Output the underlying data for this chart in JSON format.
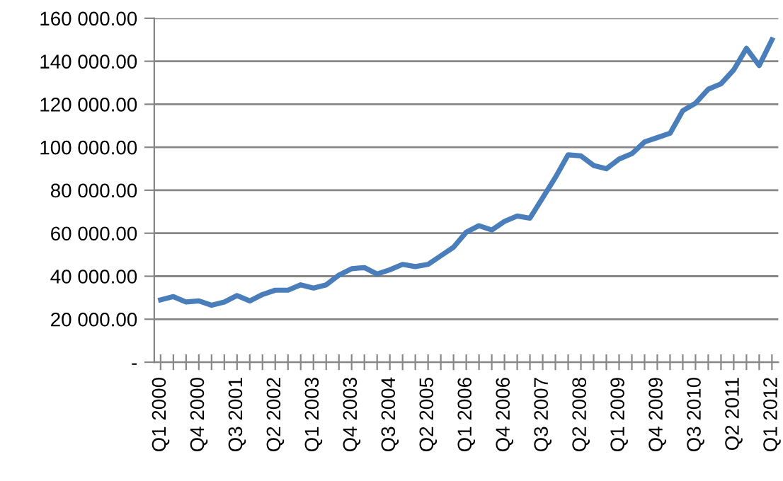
{
  "chart_data": {
    "type": "line",
    "categories": [
      "Q1 2000",
      null,
      null,
      "Q4 2000",
      null,
      null,
      "Q3 2001",
      null,
      null,
      "Q2 2002",
      null,
      null,
      "Q1 2003",
      null,
      null,
      "Q4 2003",
      null,
      null,
      "Q3 2004",
      null,
      null,
      "Q2 2005",
      null,
      null,
      "Q1 2006",
      null,
      null,
      "Q4 2006",
      null,
      null,
      "Q3 2007",
      null,
      null,
      "Q2 2008",
      null,
      null,
      "Q1 2009",
      null,
      null,
      "Q4 2009",
      null,
      null,
      "Q3 2010",
      null,
      null,
      "Q2 2011",
      null,
      null,
      "Q1 2012"
    ],
    "series": [
      {
        "color": "#4a7ebb",
        "values": [
          29000,
          30500,
          28000,
          28500,
          26500,
          28000,
          31000,
          28500,
          31500,
          33500,
          33500,
          36000,
          34500,
          36000,
          40500,
          43500,
          44000,
          41000,
          43000,
          45500,
          44500,
          45500,
          49500,
          53500,
          60500,
          63500,
          61500,
          65500,
          68000,
          67000,
          76500,
          86000,
          96500,
          96000,
          91500,
          90000,
          94500,
          97000,
          102500,
          104500,
          106500,
          117000,
          120500,
          127000,
          129500,
          136000,
          146000,
          138000,
          150000
        ]
      }
    ],
    "ylim": [
      0,
      160000
    ],
    "yticks": [
      {
        "value": 0,
        "label": "-"
      },
      {
        "value": 20000,
        "label": "20 000.00"
      },
      {
        "value": 40000,
        "label": "40 000.00"
      },
      {
        "value": 60000,
        "label": "60 000.00"
      },
      {
        "value": 80000,
        "label": "80 000.00"
      },
      {
        "value": 100000,
        "label": "100 000.00"
      },
      {
        "value": 120000,
        "label": "120 000.00"
      },
      {
        "value": 140000,
        "label": "140 000.00"
      },
      {
        "value": 160000,
        "label": "160 000.00"
      }
    ],
    "grid": "y",
    "marker": "none",
    "line_style": "solid"
  }
}
